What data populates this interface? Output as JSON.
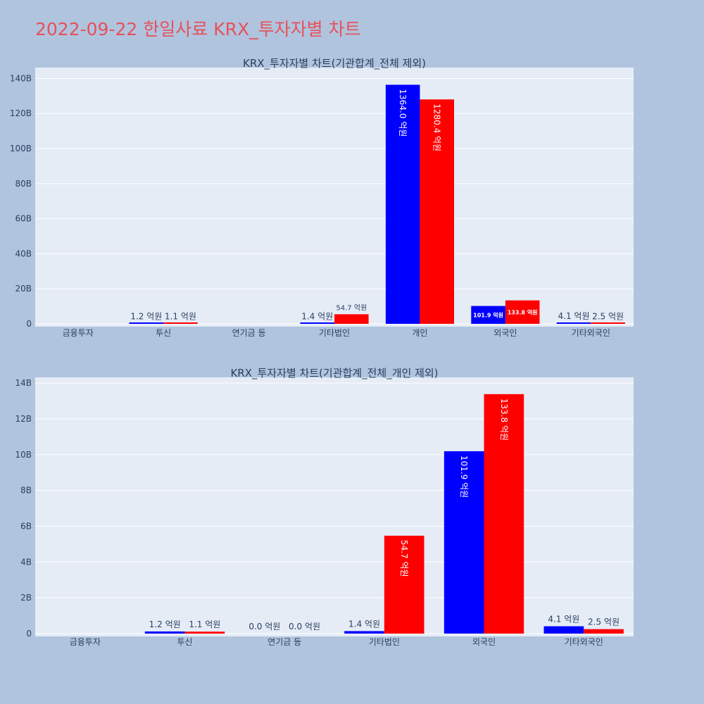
{
  "title": "2022-09-22 한일사료 KRX_투자자별 차트",
  "colors": {
    "buy": "#0000ff",
    "sell": "#ff0000",
    "plot_bg": "#e5ecf6",
    "page_bg": "#b0c4de",
    "title": "#e8505b"
  },
  "chart_data": [
    {
      "type": "bar",
      "title": "KRX_투자자별 차트(기관합계_전체 제외)",
      "categories": [
        "금융투자",
        "투신",
        "연기금 등",
        "기타법인",
        "개인",
        "외국인",
        "기타외국인"
      ],
      "ylim": [
        0,
        145
      ],
      "yticks": [
        0,
        20,
        40,
        60,
        80,
        100,
        120,
        140
      ],
      "yticklabels": [
        "0",
        "20B",
        "40B",
        "60B",
        "80B",
        "100B",
        "120B",
        "140B"
      ],
      "grid": true,
      "series": [
        {
          "color": "#0000ff",
          "values": [
            null,
            0.12,
            null,
            0.14,
            136.4,
            10.19,
            0.41
          ],
          "labels": [
            "",
            "1.2 억원",
            "",
            "1.4 억원",
            "1364.0 억원",
            "101.9 억원",
            "4.1 억원"
          ]
        },
        {
          "color": "#ff0000",
          "values": [
            null,
            0.11,
            null,
            5.47,
            128.04,
            13.38,
            0.25
          ],
          "labels": [
            "",
            "1.1 억원",
            "",
            "54.7 억원",
            "1280.4 억원",
            "133.8 억원",
            "2.5 억원"
          ]
        }
      ]
    },
    {
      "type": "bar",
      "title": "KRX_투자자별 차트(기관합계_전체_개인 제외)",
      "categories": [
        "금융투자",
        "투신",
        "연기금 등",
        "기타법인",
        "외국인",
        "기타외국인"
      ],
      "ylim": [
        0,
        14.2
      ],
      "yticks": [
        0,
        2,
        4,
        6,
        8,
        10,
        12,
        14
      ],
      "yticklabels": [
        "0",
        "2B",
        "4B",
        "6B",
        "8B",
        "10B",
        "12B",
        "14B"
      ],
      "grid": true,
      "series": [
        {
          "color": "#0000ff",
          "values": [
            null,
            0.12,
            0.0,
            0.14,
            10.19,
            0.41
          ],
          "labels": [
            "",
            "1.2 억원",
            "0.0 억원",
            "1.4 억원",
            "101.9 억원",
            "4.1 억원"
          ]
        },
        {
          "color": "#ff0000",
          "values": [
            null,
            0.11,
            0.0,
            5.47,
            13.38,
            0.25
          ],
          "labels": [
            "",
            "1.1 억원",
            "0.0 억원",
            "54.7 억원",
            "133.8 억원",
            "2.5 억원"
          ]
        }
      ]
    }
  ]
}
